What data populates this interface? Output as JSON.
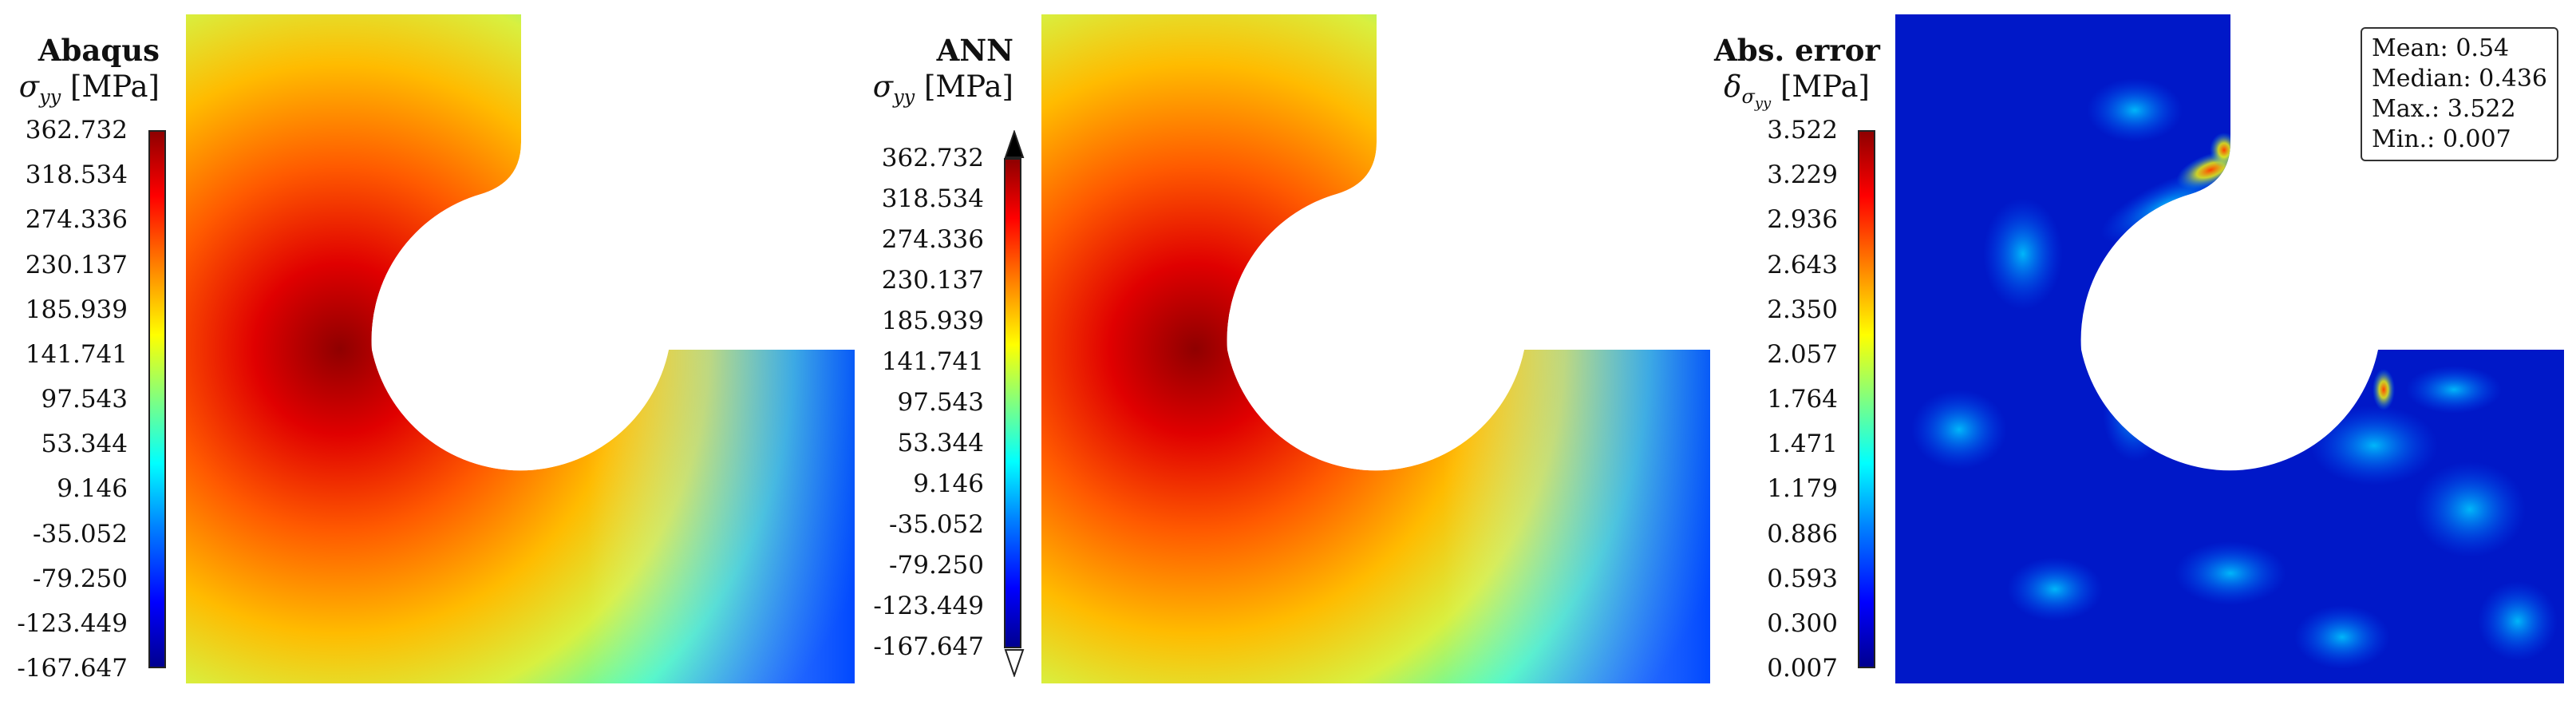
{
  "panels": [
    {
      "name": "Abaqus",
      "quantity": "σ_yy [MPa]",
      "ticks": [
        "362.732",
        "318.534",
        "274.336",
        "230.137",
        "185.939",
        "141.741",
        "97.543",
        "53.344",
        "9.146",
        "-35.052",
        "-79.250",
        "-123.449",
        "-167.647"
      ]
    },
    {
      "name": "ANN",
      "quantity": "σ_yy [MPa]",
      "ticks": [
        "362.732",
        "318.534",
        "274.336",
        "230.137",
        "185.939",
        "141.741",
        "97.543",
        "53.344",
        "9.146",
        "-35.052",
        "-79.250",
        "-123.449",
        "-167.647"
      ]
    },
    {
      "name": "Abs. error",
      "quantity": "δ_σyy [MPa]",
      "ticks": [
        "3.522",
        "3.229",
        "2.936",
        "2.643",
        "2.350",
        "2.057",
        "1.764",
        "1.471",
        "1.179",
        "0.886",
        "0.593",
        "0.300",
        "0.007"
      ]
    }
  ],
  "stats": {
    "mean": "Mean: 0.54",
    "median": "Median: 0.436",
    "max": "Max.: 3.522",
    "min": "Min.: 0.007"
  },
  "colormap": [
    "#00008f",
    "#0000ff",
    "#0080ff",
    "#00ffff",
    "#80ff80",
    "#ffff00",
    "#ff8000",
    "#ff0000",
    "#8f0000"
  ]
}
